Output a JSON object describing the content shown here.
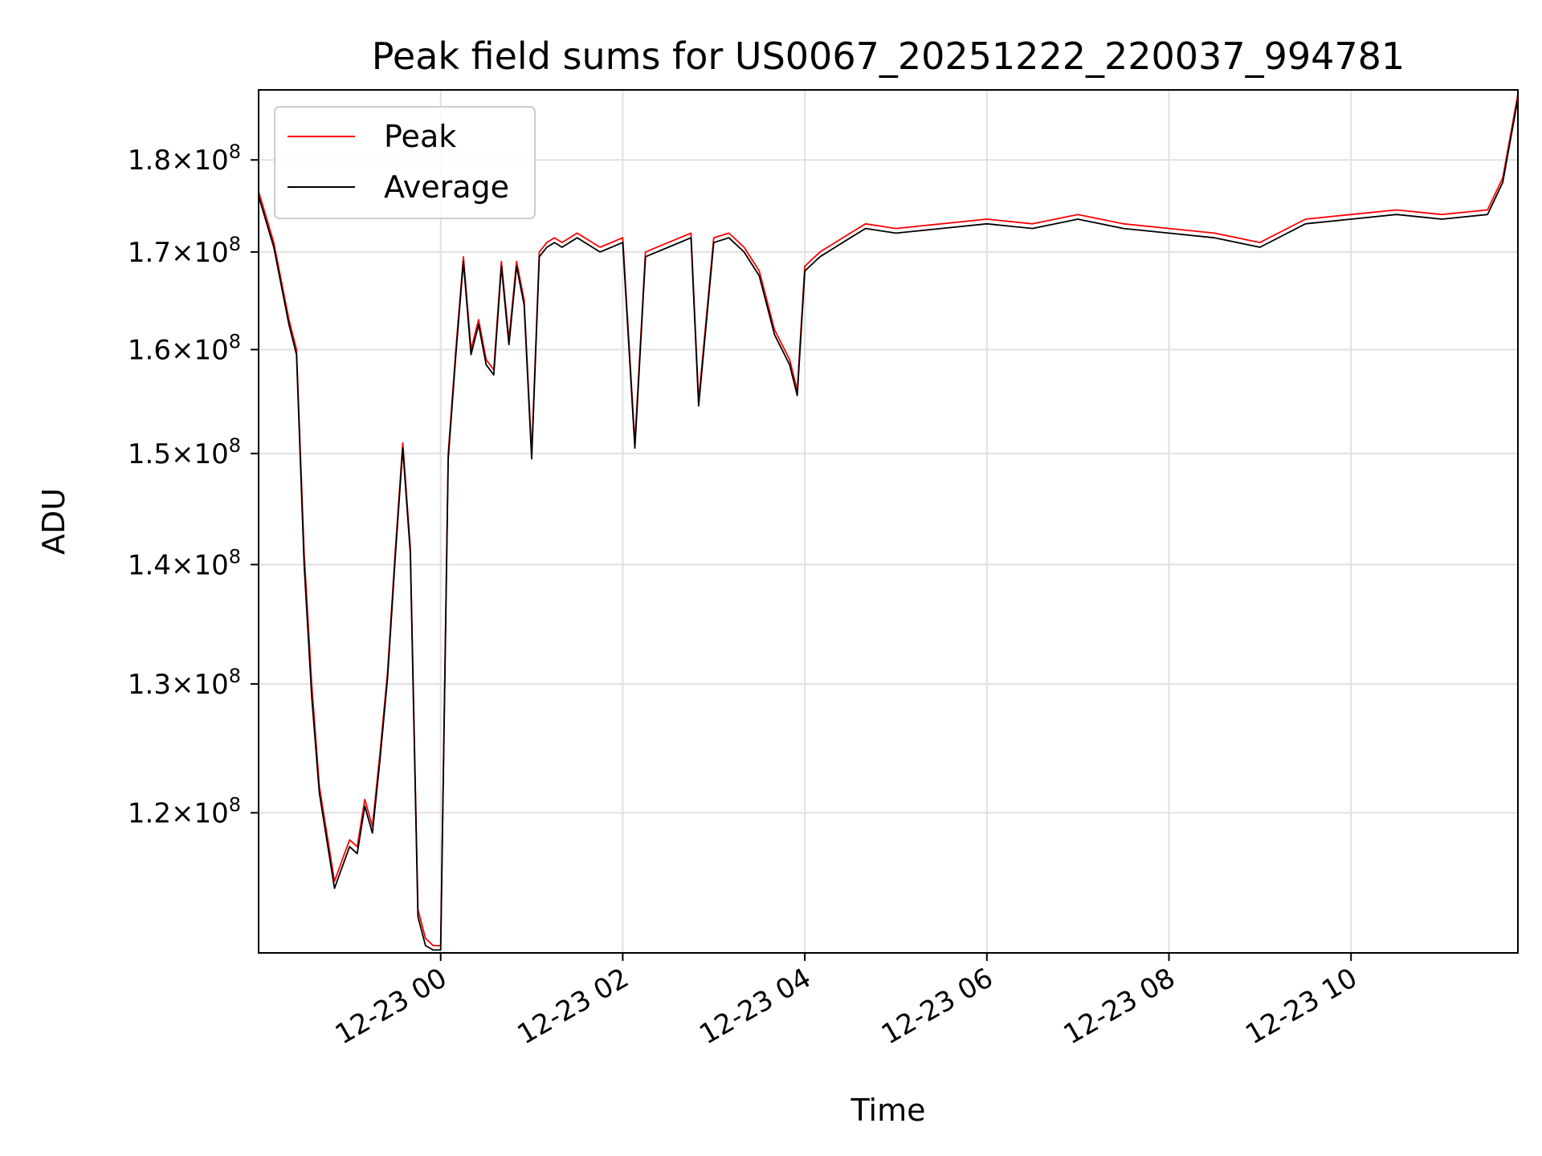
{
  "chart_data": {
    "type": "line",
    "title": "Peak field sums for US0067_20251222_220037_994781",
    "xlabel": "Time",
    "ylabel": "ADU",
    "y_scale": "log",
    "xlim": [
      "2025-12-22 22:00",
      "2025-12-23 11:50"
    ],
    "ylim": [
      110000000,
      188000000
    ],
    "grid": true,
    "legend_location": "top-left",
    "x_ticks": [
      "2025-12-23 00:00",
      "2025-12-23 02:00",
      "2025-12-23 04:00",
      "2025-12-23 06:00",
      "2025-12-23 08:00",
      "2025-12-23 10:00"
    ],
    "x_tick_labels": [
      "12-23 00",
      "12-23 02",
      "12-23 04",
      "12-23 06",
      "12-23 08",
      "12-23 10"
    ],
    "y_ticks": [
      120000000,
      130000000,
      140000000,
      150000000,
      160000000,
      170000000,
      180000000
    ],
    "y_tick_labels": [
      "1.2",
      "1.3",
      "1.4",
      "1.5",
      "1.6",
      "1.7",
      "1.8"
    ],
    "y_tick_suffix": "×10",
    "y_tick_exponent": "8",
    "x": [
      "2025-12-22 22:00",
      "2025-12-22 22:10",
      "2025-12-22 22:20",
      "2025-12-22 22:25",
      "2025-12-22 22:30",
      "2025-12-22 22:35",
      "2025-12-22 22:40",
      "2025-12-22 22:50",
      "2025-12-22 22:55",
      "2025-12-22 23:00",
      "2025-12-22 23:05",
      "2025-12-22 23:10",
      "2025-12-22 23:15",
      "2025-12-22 23:20",
      "2025-12-22 23:25",
      "2025-12-22 23:30",
      "2025-12-22 23:35",
      "2025-12-22 23:40",
      "2025-12-22 23:45",
      "2025-12-22 23:50",
      "2025-12-22 23:55",
      "2025-12-23 00:00",
      "2025-12-23 00:05",
      "2025-12-23 00:10",
      "2025-12-23 00:15",
      "2025-12-23 00:20",
      "2025-12-23 00:25",
      "2025-12-23 00:30",
      "2025-12-23 00:35",
      "2025-12-23 00:40",
      "2025-12-23 00:45",
      "2025-12-23 00:50",
      "2025-12-23 00:55",
      "2025-12-23 01:00",
      "2025-12-23 01:05",
      "2025-12-23 01:10",
      "2025-12-23 01:15",
      "2025-12-23 01:20",
      "2025-12-23 01:30",
      "2025-12-23 01:45",
      "2025-12-23 02:00",
      "2025-12-23 02:08",
      "2025-12-23 02:15",
      "2025-12-23 02:30",
      "2025-12-23 02:45",
      "2025-12-23 02:50",
      "2025-12-23 03:00",
      "2025-12-23 03:10",
      "2025-12-23 03:20",
      "2025-12-23 03:30",
      "2025-12-23 03:40",
      "2025-12-23 03:50",
      "2025-12-23 03:55",
      "2025-12-23 04:00",
      "2025-12-23 04:10",
      "2025-12-23 04:20",
      "2025-12-23 04:30",
      "2025-12-23 04:40",
      "2025-12-23 05:00",
      "2025-12-23 05:30",
      "2025-12-23 06:00",
      "2025-12-23 06:30",
      "2025-12-23 07:00",
      "2025-12-23 07:30",
      "2025-12-23 08:00",
      "2025-12-23 08:30",
      "2025-12-23 09:00",
      "2025-12-23 09:30",
      "2025-12-23 10:00",
      "2025-12-23 10:30",
      "2025-12-23 11:00",
      "2025-12-23 11:30",
      "2025-12-23 11:40",
      "2025-12-23 11:50"
    ],
    "series": [
      {
        "name": "Peak",
        "color": "#ff0000",
        "values": [
          176500000,
          171000000,
          163000000,
          160000000,
          141000000,
          130000000,
          122000000,
          115000000,
          116500000,
          118000000,
          117500000,
          121000000,
          119000000,
          124500000,
          131000000,
          141000000,
          151000000,
          141500000,
          113000000,
          111000000,
          110500000,
          110500000,
          150000000,
          160000000,
          169500000,
          160000000,
          163000000,
          159000000,
          158000000,
          169000000,
          161000000,
          169000000,
          165000000,
          150000000,
          170000000,
          171000000,
          171500000,
          171000000,
          172000000,
          170500000,
          171500000,
          151000000,
          170000000,
          171000000,
          172000000,
          155000000,
          171500000,
          172000000,
          170500000,
          168000000,
          162000000,
          159000000,
          156000000,
          168500000,
          170000000,
          171000000,
          172000000,
          173000000,
          172500000,
          173000000,
          173500000,
          173000000,
          174000000,
          173000000,
          172500000,
          172000000,
          171000000,
          173500000,
          174000000,
          174500000,
          174000000,
          174500000,
          178000000,
          187500000
        ]
      },
      {
        "name": "Average",
        "color": "#000000",
        "values": [
          176000000,
          170500000,
          162500000,
          159500000,
          140000000,
          129000000,
          121500000,
          114500000,
          116000000,
          117500000,
          117000000,
          120500000,
          118500000,
          124000000,
          130500000,
          140500000,
          150500000,
          141000000,
          112500000,
          110500000,
          110200000,
          110200000,
          149500000,
          159500000,
          169000000,
          159500000,
          162500000,
          158500000,
          157500000,
          168500000,
          160500000,
          168500000,
          164500000,
          149500000,
          169500000,
          170500000,
          171000000,
          170500000,
          171500000,
          170000000,
          171000000,
          150500000,
          169500000,
          170500000,
          171500000,
          154500000,
          171000000,
          171500000,
          170000000,
          167500000,
          161500000,
          158500000,
          155500000,
          168000000,
          169500000,
          170500000,
          171500000,
          172500000,
          172000000,
          172500000,
          173000000,
          172500000,
          173500000,
          172500000,
          172000000,
          171500000,
          170500000,
          173000000,
          173500000,
          174000000,
          173500000,
          174000000,
          177500000,
          187000000
        ]
      }
    ]
  }
}
